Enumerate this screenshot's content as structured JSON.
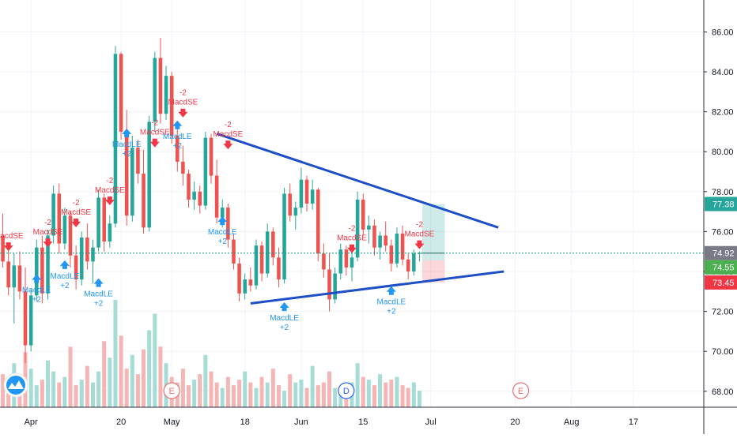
{
  "chart_data": {
    "type": "candlestick",
    "y_ticks": [
      68,
      70,
      72,
      74,
      76,
      78,
      80,
      82,
      84,
      86
    ],
    "y_tick_labels": [
      "68.00",
      "70.00",
      "72.00",
      "74.00",
      "76.00",
      "78.00",
      "80.00",
      "82.00",
      "84.00",
      "86.00"
    ],
    "ylim": [
      67.2,
      87.6
    ],
    "x_tick_labels": [
      "Apr",
      "20",
      "May",
      "18",
      "Jun",
      "15",
      "Jul",
      "20",
      "Aug",
      "17"
    ],
    "x_tick_bar_index": [
      5,
      21,
      30,
      43,
      53,
      64,
      76,
      91,
      101,
      112
    ],
    "total_bar_slots": 125,
    "last_bar_index": 74,
    "price_labels": [
      {
        "name": "target",
        "value": 77.38,
        "text": "77.38",
        "color": "#26a69a"
      },
      {
        "name": "last",
        "value": 74.92,
        "text": "74.92",
        "color": "#787b86"
      },
      {
        "name": "entry",
        "value": 74.55,
        "text": "74.55",
        "color": "#4caf50"
      },
      {
        "name": "stop",
        "value": 73.45,
        "text": "73.45",
        "color": "#f23645"
      }
    ],
    "current_price_line": 74.92,
    "trendlines": [
      {
        "name": "upper",
        "x1": 38,
        "y1": 80.9,
        "x2": 88,
        "y2": 76.2,
        "color": "#1e4fc6"
      },
      {
        "name": "lower",
        "x1": 44,
        "y1": 72.4,
        "x2": 89,
        "y2": 74.0,
        "color": "#1e4fc6"
      }
    ],
    "position_box": {
      "x1": 75,
      "x2": 78,
      "entry": 74.55,
      "target": 77.38,
      "stop": 73.45
    },
    "candles": [
      [
        75.8,
        76.9,
        74.2,
        74.5
      ],
      [
        74.5,
        75.1,
        72.8,
        73.2
      ],
      [
        73.2,
        74.9,
        71.4,
        74.3
      ],
      [
        74.3,
        75.0,
        72.6,
        73.0
      ],
      [
        73.0,
        74.2,
        69.4,
        70.3
      ],
      [
        70.3,
        73.1,
        70.0,
        72.8
      ],
      [
        72.8,
        75.6,
        72.5,
        75.2
      ],
      [
        75.2,
        75.8,
        72.4,
        72.9
      ],
      [
        72.9,
        76.1,
        72.6,
        75.8
      ],
      [
        75.8,
        78.3,
        75.4,
        77.9
      ],
      [
        77.9,
        78.4,
        74.9,
        75.4
      ],
      [
        75.4,
        77.2,
        75.1,
        76.8
      ],
      [
        76.8,
        77.0,
        74.2,
        74.8
      ],
      [
        74.8,
        75.3,
        73.1,
        73.6
      ],
      [
        73.6,
        76.0,
        73.3,
        75.7
      ],
      [
        75.7,
        76.4,
        74.1,
        74.5
      ],
      [
        74.5,
        75.6,
        73.4,
        75.2
      ],
      [
        75.2,
        78.1,
        75.0,
        77.7
      ],
      [
        77.7,
        77.9,
        75.0,
        75.5
      ],
      [
        75.5,
        76.8,
        75.2,
        76.4
      ],
      [
        76.4,
        85.3,
        76.2,
        84.9
      ],
      [
        84.9,
        85.0,
        80.6,
        81.0
      ],
      [
        81.0,
        82.1,
        76.3,
        76.8
      ],
      [
        76.8,
        80.8,
        76.5,
        80.2
      ],
      [
        80.2,
        80.6,
        78.4,
        78.9
      ],
      [
        78.9,
        80.1,
        75.9,
        76.2
      ],
      [
        76.2,
        81.8,
        76.0,
        81.5
      ],
      [
        81.5,
        85.0,
        81.0,
        84.7
      ],
      [
        84.7,
        85.7,
        81.4,
        81.9
      ],
      [
        81.9,
        84.3,
        81.6,
        83.8
      ],
      [
        83.8,
        84.0,
        80.4,
        80.8
      ],
      [
        80.8,
        81.2,
        79.0,
        79.5
      ],
      [
        79.5,
        80.3,
        78.3,
        78.9
      ],
      [
        78.9,
        79.1,
        77.2,
        77.6
      ],
      [
        77.6,
        78.5,
        77.1,
        78.0
      ],
      [
        78.0,
        78.3,
        76.9,
        77.3
      ],
      [
        77.3,
        81.0,
        77.1,
        80.7
      ],
      [
        80.7,
        80.9,
        78.4,
        78.8
      ],
      [
        78.8,
        79.6,
        76.4,
        76.7
      ],
      [
        76.7,
        77.6,
        76.2,
        77.2
      ],
      [
        77.2,
        77.4,
        75.2,
        75.6
      ],
      [
        75.6,
        75.9,
        74.1,
        74.4
      ],
      [
        74.4,
        74.7,
        72.5,
        72.9
      ],
      [
        72.9,
        73.9,
        72.6,
        73.6
      ],
      [
        73.6,
        74.2,
        73.0,
        73.3
      ],
      [
        73.3,
        75.6,
        73.1,
        75.3
      ],
      [
        75.3,
        75.5,
        73.5,
        73.9
      ],
      [
        73.9,
        76.4,
        73.7,
        76.0
      ],
      [
        76.0,
        76.2,
        74.3,
        74.7
      ],
      [
        74.7,
        75.2,
        73.2,
        73.6
      ],
      [
        73.6,
        78.2,
        73.4,
        77.9
      ],
      [
        77.9,
        78.4,
        76.5,
        76.8
      ],
      [
        76.8,
        77.5,
        76.1,
        77.2
      ],
      [
        77.2,
        79.2,
        76.9,
        78.6
      ],
      [
        78.6,
        78.8,
        77.0,
        77.4
      ],
      [
        77.4,
        78.6,
        77.1,
        78.1
      ],
      [
        78.1,
        78.2,
        74.5,
        74.9
      ],
      [
        74.9,
        75.4,
        73.7,
        74.1
      ],
      [
        74.1,
        74.9,
        72.0,
        72.6
      ],
      [
        72.6,
        74.2,
        72.4,
        73.9
      ],
      [
        73.9,
        75.4,
        73.6,
        75.1
      ],
      [
        75.1,
        75.3,
        73.8,
        74.2
      ],
      [
        74.2,
        75.0,
        73.5,
        74.7
      ],
      [
        74.7,
        78.0,
        74.5,
        77.6
      ],
      [
        77.6,
        77.9,
        75.8,
        76.1
      ],
      [
        76.1,
        76.8,
        75.4,
        76.3
      ],
      [
        76.3,
        76.6,
        74.8,
        75.2
      ],
      [
        75.2,
        76.0,
        74.6,
        75.8
      ],
      [
        75.8,
        76.5,
        75.0,
        75.3
      ],
      [
        75.3,
        75.6,
        74.0,
        74.4
      ],
      [
        74.4,
        76.2,
        74.2,
        75.9
      ],
      [
        75.9,
        76.3,
        74.3,
        74.6
      ],
      [
        74.6,
        74.9,
        73.6,
        74.0
      ],
      [
        74.0,
        75.1,
        73.8,
        74.9
      ],
      [
        74.9,
        75.0,
        74.5,
        74.92
      ]
    ],
    "volumes": [
      1.2,
      0.9,
      1.6,
      1.1,
      2.0,
      1.4,
      0.8,
      1.0,
      1.7,
      1.3,
      0.9,
      1.1,
      2.2,
      0.8,
      1.0,
      1.5,
      0.9,
      1.3,
      2.4,
      1.8,
      3.9,
      2.6,
      1.4,
      1.9,
      1.2,
      2.1,
      2.8,
      3.4,
      2.2,
      1.6,
      1.1,
      0.9,
      1.4,
      0.8,
      1.0,
      1.2,
      1.9,
      1.3,
      0.9,
      0.7,
      1.1,
      0.8,
      1.0,
      1.3,
      0.9,
      0.7,
      1.1,
      0.9,
      1.4,
      0.8,
      0.6,
      1.2,
      0.9,
      1.0,
      0.7,
      1.5,
      0.8,
      0.9,
      1.3,
      0.7,
      0.6,
      0.8,
      0.9,
      1.6,
      1.1,
      1.0,
      0.8,
      1.2,
      0.9,
      1.0,
      1.1,
      0.8,
      0.7,
      0.9,
      0.6
    ],
    "signals": [
      {
        "bar": 1,
        "label": "MacdSE",
        "qty": "",
        "dir": "sell",
        "value": 75.1
      },
      {
        "bar": 6,
        "label": "MacdLE",
        "qty": "+2",
        "dir": "buy",
        "value": 73.9
      },
      {
        "bar": 8,
        "label": "MacdSE",
        "qty": "-2",
        "dir": "sell",
        "value": 75.3
      },
      {
        "bar": 11,
        "label": "MacdLE",
        "qty": "+2",
        "dir": "buy",
        "value": 74.6
      },
      {
        "bar": 13,
        "label": "MacdSE",
        "qty": "-2",
        "dir": "sell",
        "value": 76.3
      },
      {
        "bar": 17,
        "label": "MacdLE",
        "qty": "+2",
        "dir": "buy",
        "value": 73.7
      },
      {
        "bar": 19,
        "label": "MacdSE",
        "qty": "-2",
        "dir": "sell",
        "value": 77.4
      },
      {
        "bar": 22,
        "label": "MacdLE",
        "qty": "+2",
        "dir": "buy",
        "value": 81.2
      },
      {
        "bar": 27,
        "label": "MacdSE",
        "qty": "-2",
        "dir": "sell",
        "value": 80.3
      },
      {
        "bar": 31,
        "label": "MacdLE",
        "qty": "+2",
        "dir": "buy",
        "value": 81.6
      },
      {
        "bar": 32,
        "label": "MacdSE",
        "qty": "-2",
        "dir": "sell",
        "value": 81.8
      },
      {
        "bar": 39,
        "label": "MacdLE",
        "qty": "+2",
        "dir": "buy",
        "value": 76.8
      },
      {
        "bar": 40,
        "label": "MacdSE",
        "qty": "-2",
        "dir": "sell",
        "value": 80.2
      },
      {
        "bar": 50,
        "label": "MacdLE",
        "qty": "+2",
        "dir": "buy",
        "value": 72.5
      },
      {
        "bar": 62,
        "label": "MacdSE",
        "qty": "-2",
        "dir": "sell",
        "value": 75.0
      },
      {
        "bar": 69,
        "label": "MacdLE",
        "qty": "+2",
        "dir": "buy",
        "value": 73.3
      },
      {
        "bar": 74,
        "label": "MacdSE",
        "qty": "-2",
        "dir": "sell",
        "value": 75.2
      }
    ],
    "event_markers": [
      {
        "label": "E",
        "bar": 30,
        "color": "#e57373"
      },
      {
        "label": "D",
        "bar": 61,
        "color": "#2962ff"
      },
      {
        "label": "E",
        "bar": 92,
        "color": "#e57373"
      }
    ],
    "colors": {
      "up": "#26a69a",
      "up_fill": "#26a69a",
      "down": "#ef5350",
      "grid": "#f0f3fa",
      "buy": "#2196f3",
      "sell": "#f23645"
    }
  },
  "logo_icon": "tradingview-logo-icon"
}
